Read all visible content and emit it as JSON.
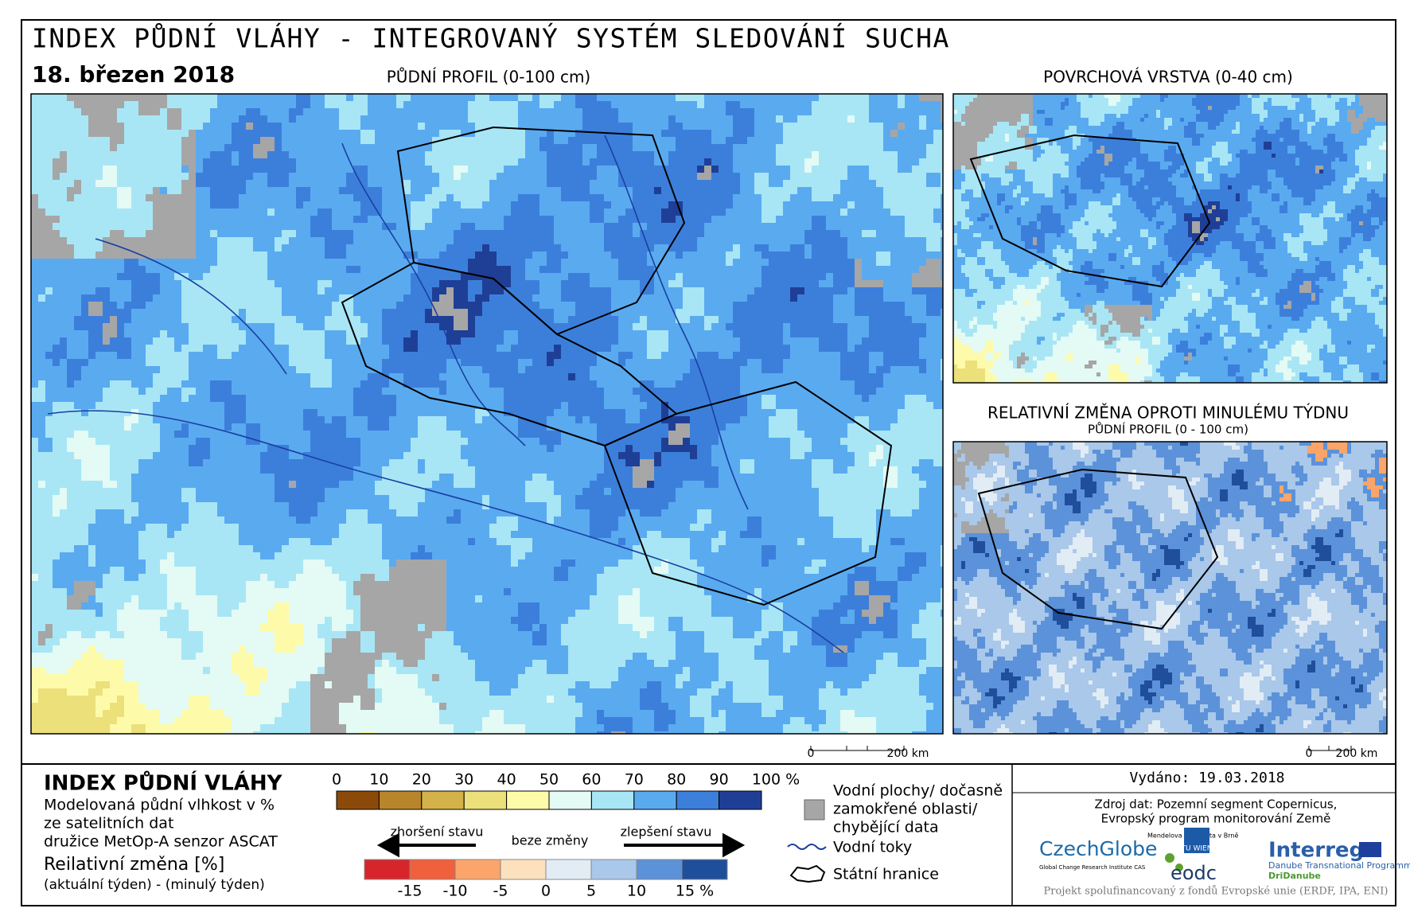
{
  "header": {
    "title": "INDEX PŮDNÍ VLÁHY - INTEGROVANÝ SYSTÉM SLEDOVÁNÍ SUCHA",
    "date": "18. březen 2018"
  },
  "maps": [
    {
      "title": "PŮDNÍ PROFIL (0-100 cm)",
      "scale": [
        "0",
        "200 km"
      ]
    },
    {
      "title": "POVRCHOVÁ VRSTVA (0-40 cm)"
    },
    {
      "title": "RELATIVNÍ ZMĚNA OPROTI MINULÉMU TÝDNU",
      "subtitle": "PŮDNÍ PROFIL (0 - 100 cm)",
      "scale": [
        "0",
        "200 km"
      ]
    }
  ],
  "legend": {
    "title": "INDEX PŮDNÍ VLÁHY",
    "description": [
      "Modelovaná půdní vlhkost v %",
      "ze satelitních dat",
      "družice MetOp-A senzor ASCAT"
    ],
    "change_title": "Reilativní změna [%]",
    "change_note": "(aktuální týden) - (minulý týden)",
    "index_scale": {
      "labels": [
        "0",
        "10",
        "20",
        "30",
        "40",
        "50",
        "60",
        "70",
        "80",
        "90",
        "100 %"
      ],
      "colors": [
        "#8b4a0a",
        "#b8862a",
        "#d4b24a",
        "#ece07a",
        "#fdfbaa",
        "#e4faf4",
        "#a8e6f6",
        "#5aaaf0",
        "#3c7fdb",
        "#1f3f96"
      ]
    },
    "change_scale": {
      "worse": "zhoršení stavu",
      "none": "beze změny",
      "better": "zlepšení stavu",
      "labels": [
        "-15",
        "-10",
        "-5",
        "0",
        "5",
        "10",
        "15 %"
      ],
      "colors": [
        "#d7262b",
        "#f0603c",
        "#fba56a",
        "#fde1be",
        "#e2ecf5",
        "#a9c8ea",
        "#5c92d9",
        "#1f4e9b"
      ]
    },
    "symbols": {
      "water": [
        "Vodní plochy/ dočasně",
        "zamokřené oblasti/",
        "chybějící data"
      ],
      "rivers": "Vodní toky",
      "borders": "Státní hranice"
    }
  },
  "footer": {
    "issued": "Vydáno: 19.03.2018",
    "source": [
      "Zdroj dat: Pozemní segment Copernicus,",
      "Evropský program monitorování Země"
    ],
    "logos": {
      "czechglobe": "CzechGlobe",
      "czechglobe_sub": "Global Change Research Institute CAS",
      "mendel": "Mendelova univerzita v Brně",
      "tu": "TU WIEN",
      "eodc": "eodc",
      "interreg": "Interreg",
      "programme": "Danube Transnational Programme",
      "project": "DriDanube"
    },
    "funding": "Projekt spolufinancovaný z fondů Evropské unie (ERDF, IPA, ENI)"
  }
}
